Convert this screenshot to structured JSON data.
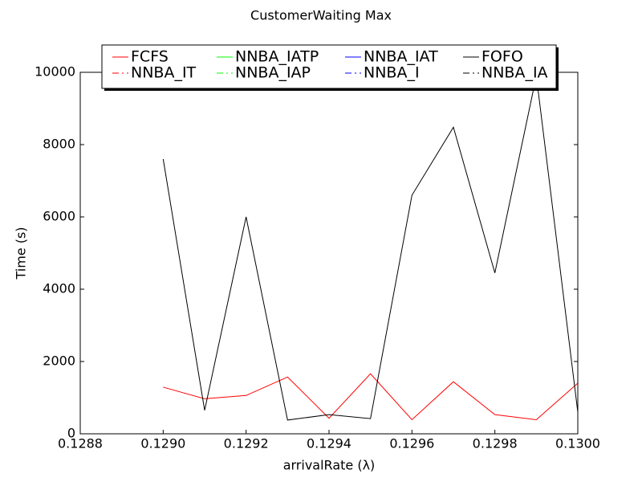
{
  "chart_data": {
    "type": "line",
    "title": "CustomerWaiting Max",
    "x_label": "arrivalRate (λ)",
    "y_label": "Time (s)",
    "x": [
      0.129,
      0.1291,
      0.1292,
      0.1293,
      0.1294,
      0.1295,
      0.1296,
      0.1297,
      0.1298,
      0.1299,
      0.13
    ],
    "series": [
      {
        "name": "FCFS",
        "color": "#ff0000",
        "dash": "solid",
        "values": [
          1290,
          970,
          1060,
          1570,
          430,
          1660,
          390,
          1440,
          530,
          390,
          1400
        ]
      },
      {
        "name": "NNBA_IT",
        "color": "#ff0000",
        "dash": "dashdot",
        "values": [
          null,
          null,
          null,
          null,
          null,
          null,
          null,
          null,
          null,
          null,
          null
        ]
      },
      {
        "name": "NNBA_IATP",
        "color": "#00ff00",
        "dash": "solid",
        "values": [
          null,
          null,
          null,
          null,
          null,
          null,
          null,
          null,
          null,
          null,
          null
        ]
      },
      {
        "name": "NNBA_IAP",
        "color": "#00ff00",
        "dash": "dashdot",
        "values": [
          null,
          null,
          null,
          null,
          null,
          null,
          null,
          null,
          null,
          null,
          null
        ]
      },
      {
        "name": "NNBA_IAT",
        "color": "#0000ff",
        "dash": "solid",
        "values": [
          null,
          null,
          null,
          null,
          null,
          null,
          null,
          null,
          null,
          null,
          null
        ]
      },
      {
        "name": "NNBA_I",
        "color": "#0000ff",
        "dash": "dashdot",
        "values": [
          null,
          null,
          null,
          null,
          null,
          null,
          null,
          null,
          null,
          null,
          null
        ]
      },
      {
        "name": "FOFO",
        "color": "#000000",
        "dash": "solid",
        "values": [
          7600,
          650,
          6000,
          380,
          530,
          420,
          6600,
          8480,
          4450,
          9900,
          600
        ]
      },
      {
        "name": "NNBA_IA",
        "color": "#000000",
        "dash": "dashdot",
        "values": [
          null,
          null,
          null,
          null,
          null,
          null,
          null,
          null,
          null,
          null,
          null
        ]
      }
    ],
    "xlim": [
      0.1288,
      0.13
    ],
    "xticks": [
      0.1288,
      {
        "value": 0.129,
        "label": "0.1290"
      },
      0.1292,
      0.1294,
      0.1296,
      0.1298,
      {
        "value": 0.13,
        "label": "0.1300"
      }
    ],
    "ylim": [
      0,
      10000
    ],
    "yticks": [
      0,
      2000,
      4000,
      6000,
      8000,
      10000
    ],
    "grid": false,
    "legend": {
      "position": "upper center",
      "columns": 4
    }
  }
}
